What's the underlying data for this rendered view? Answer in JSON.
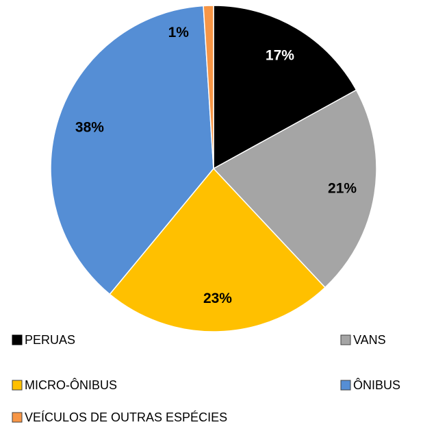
{
  "chart_data": {
    "type": "pie",
    "categories": [
      "PERUAS",
      "VANS",
      "MICRO-ÔNIBUS",
      "ÔNIBUS",
      "VEÍCULOS DE OUTRAS ESPÉCIES"
    ],
    "values": [
      17,
      21,
      23,
      38,
      1
    ],
    "value_labels": [
      "17%",
      "21%",
      "23%",
      "38%",
      "1%"
    ],
    "colors": [
      "#000000",
      "#a5a5a5",
      "#ffc000",
      "#558ed5",
      "#f79646"
    ]
  }
}
